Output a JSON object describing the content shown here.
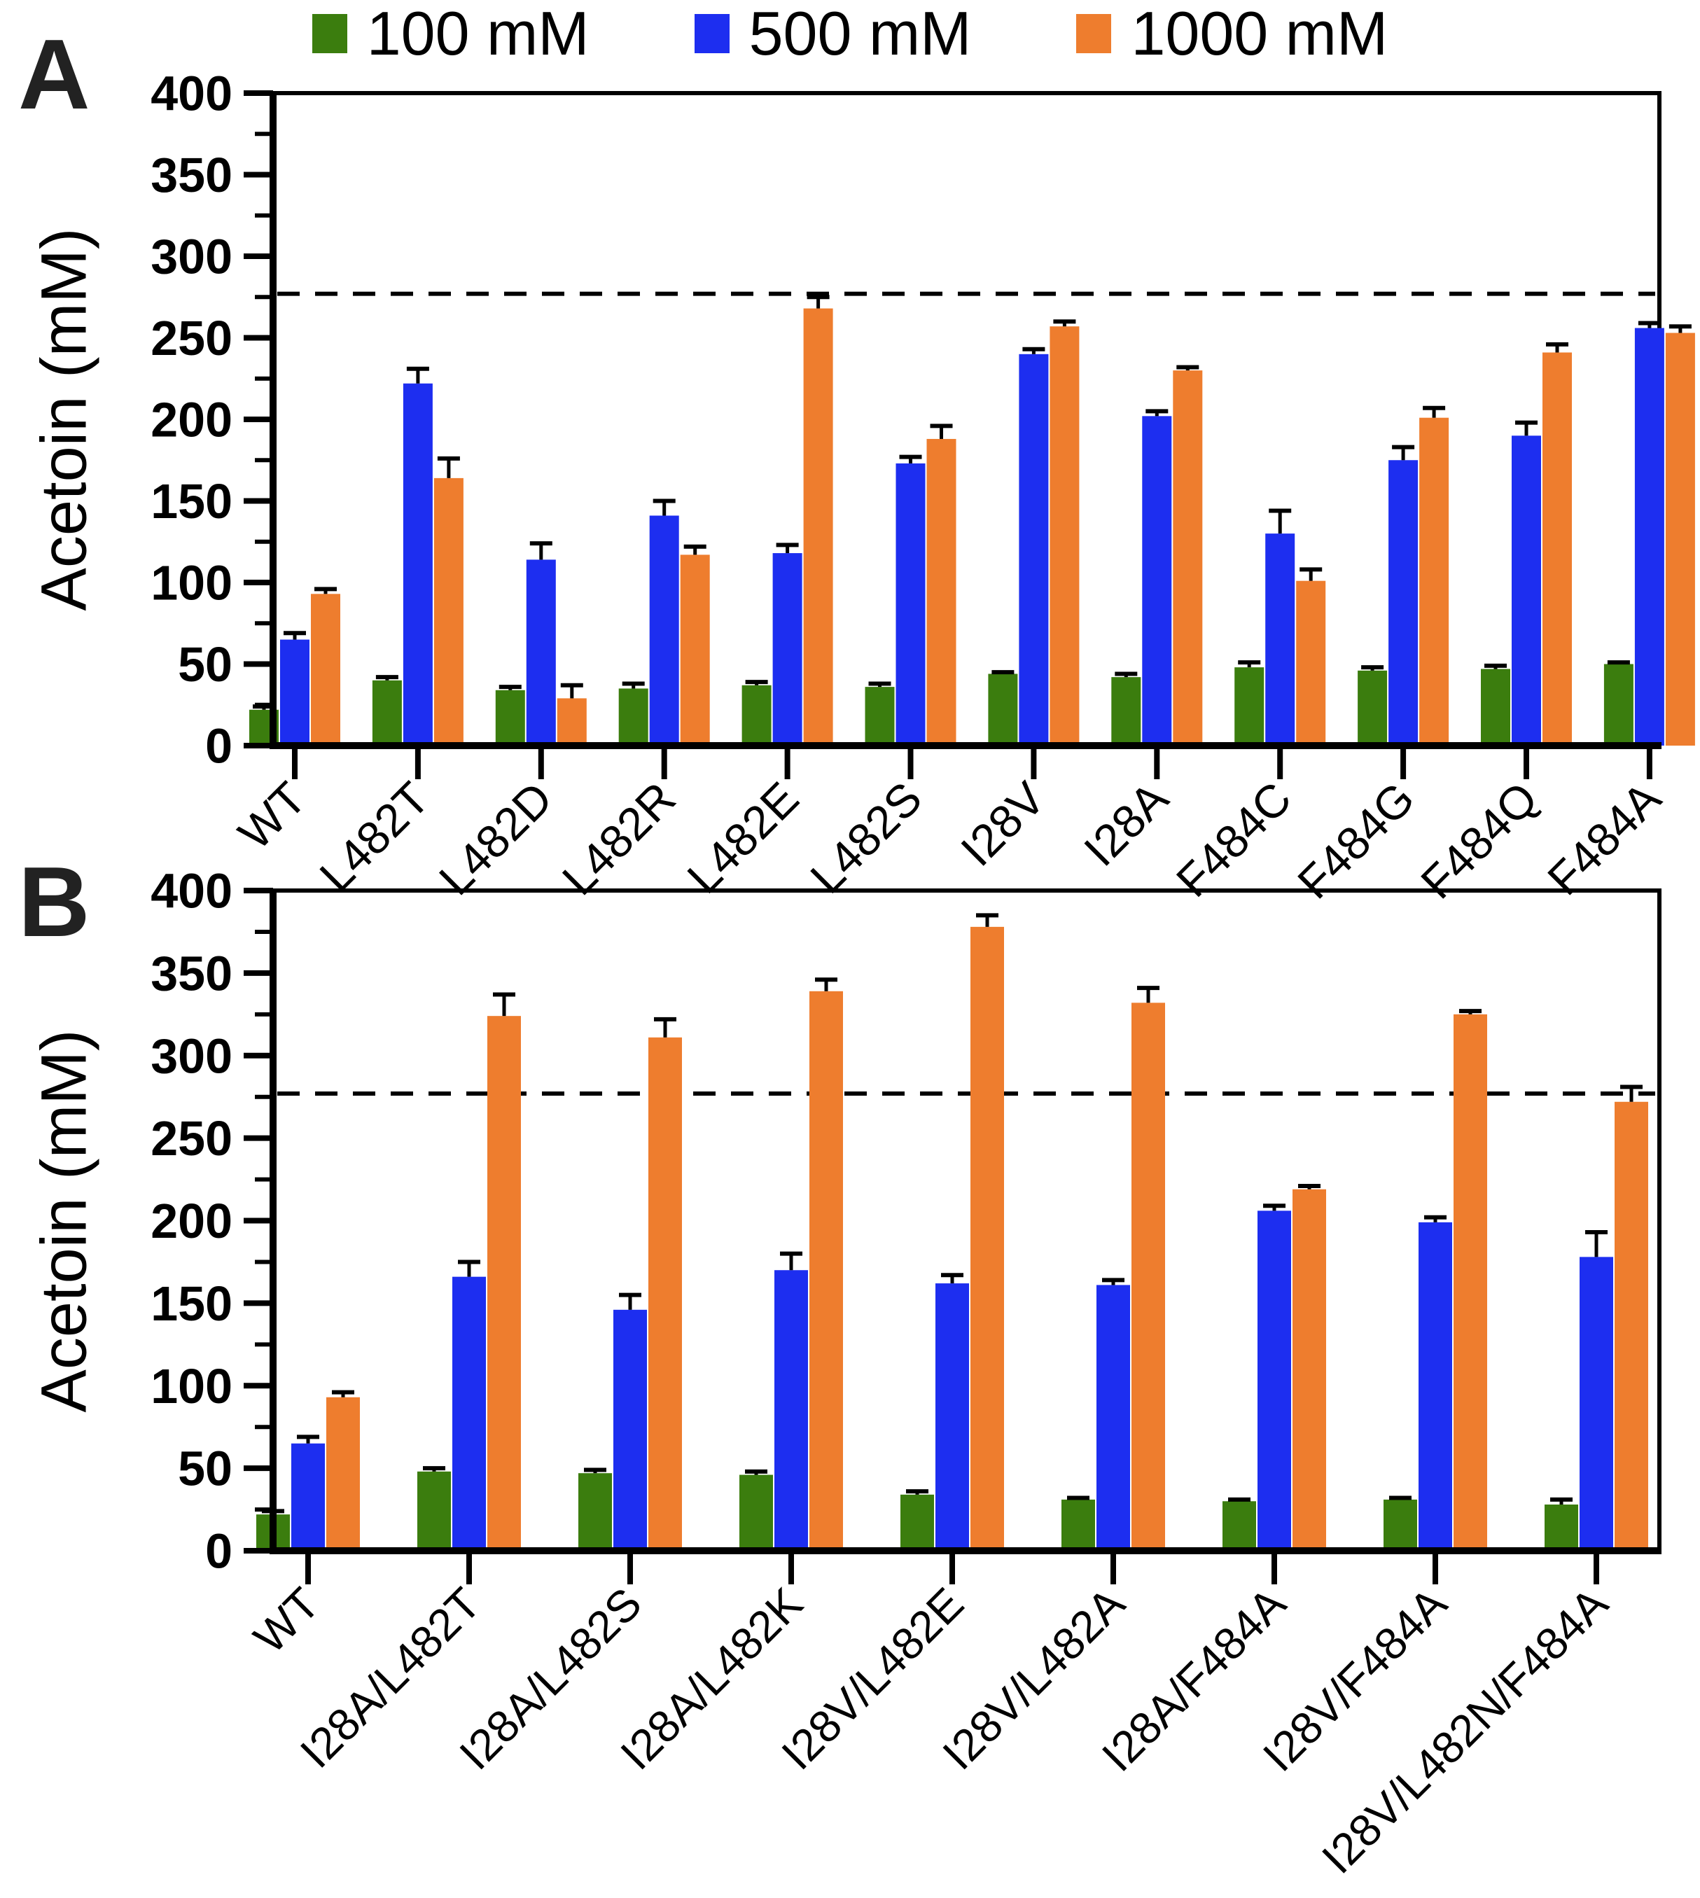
{
  "chart_data": [
    {
      "type": "bar",
      "panel_label": "A",
      "title": "",
      "xlabel": "",
      "ylabel": "Acetoin (mM)",
      "ylim": [
        0,
        400
      ],
      "ytick_step": 50,
      "yminor_step": 25,
      "grid": false,
      "legend_position": "top",
      "dashed_line_y": 277,
      "categories": [
        "WT",
        "L482T",
        "L482D",
        "L482R",
        "L482E",
        "L482S",
        "I28V",
        "I28A",
        "F484C",
        "F484G",
        "F484Q",
        "F484A"
      ],
      "series": [
        {
          "name": "100 mM",
          "color": "#3b7d0e",
          "values": [
            22,
            40,
            34,
            35,
            37,
            36,
            44,
            42,
            48,
            46,
            47,
            50
          ],
          "errors": [
            2,
            2,
            2,
            3,
            2,
            2,
            1,
            2,
            3,
            2,
            2,
            1
          ]
        },
        {
          "name": "500 mM",
          "color": "#1d2ef0",
          "values": [
            65,
            222,
            114,
            141,
            118,
            173,
            240,
            202,
            130,
            175,
            190,
            256
          ],
          "errors": [
            4,
            9,
            10,
            9,
            5,
            4,
            3,
            3,
            14,
            8,
            8,
            3
          ]
        },
        {
          "name": "1000 mM",
          "color": "#ee7d2e",
          "values": [
            93,
            164,
            29,
            117,
            268,
            188,
            257,
            230,
            101,
            201,
            241,
            253
          ],
          "errors": [
            3,
            12,
            8,
            5,
            7,
            8,
            3,
            2,
            7,
            6,
            5,
            4
          ]
        }
      ]
    },
    {
      "type": "bar",
      "panel_label": "B",
      "title": "",
      "xlabel": "",
      "ylabel": "Acetoin (mM)",
      "ylim": [
        0,
        400
      ],
      "ytick_step": 50,
      "yminor_step": 25,
      "grid": false,
      "legend_position": "none",
      "dashed_line_y": 277,
      "categories": [
        "WT",
        "I28A/L482T",
        "I28A/L482S",
        "I28A/L482K",
        "I28V/L482E",
        "I28V/L482A",
        "I28A/F484A",
        "I28V/F484A",
        "I28V/L482N/F484A"
      ],
      "series": [
        {
          "name": "100 mM",
          "color": "#3b7d0e",
          "values": [
            22,
            48,
            47,
            46,
            34,
            31,
            30,
            31,
            28
          ],
          "errors": [
            2,
            2,
            2,
            2,
            2,
            1,
            1,
            1,
            3
          ]
        },
        {
          "name": "500 mM",
          "color": "#1d2ef0",
          "values": [
            65,
            166,
            146,
            170,
            162,
            161,
            206,
            199,
            178
          ],
          "errors": [
            4,
            9,
            9,
            10,
            5,
            3,
            3,
            3,
            15
          ]
        },
        {
          "name": "1000 mM",
          "color": "#ee7d2e",
          "values": [
            93,
            324,
            311,
            339,
            378,
            332,
            219,
            325,
            272
          ],
          "errors": [
            3,
            13,
            11,
            7,
            7,
            9,
            2,
            2,
            9
          ]
        }
      ]
    }
  ]
}
